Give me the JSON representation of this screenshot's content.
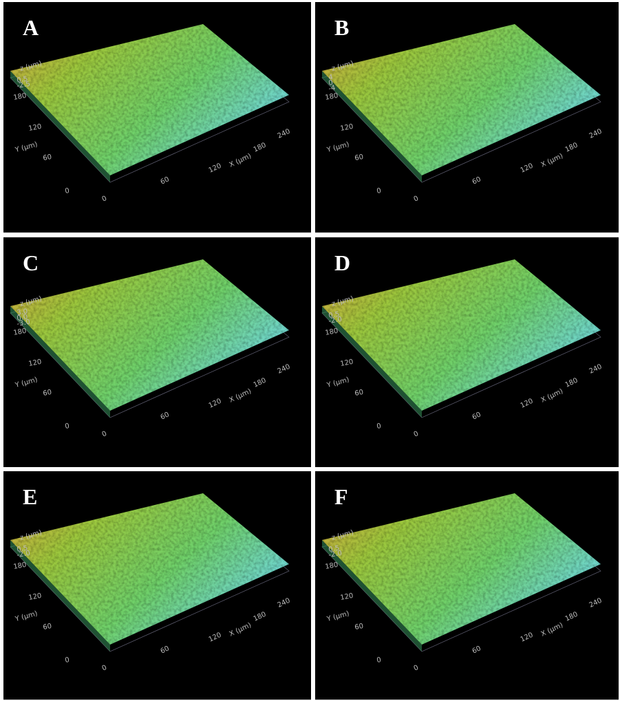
{
  "panels": [
    {
      "label": "A",
      "z_axis_label": "z (µm)",
      "z_ticks": [
        "0.5",
        "-2.5"
      ],
      "y_axis_label": "Y (µm)",
      "y_ticks": [
        "180",
        "120",
        "60",
        "0"
      ],
      "x_axis_label": "X (µm)",
      "x_ticks": [
        "0",
        "60",
        "120",
        "180",
        "240"
      ]
    },
    {
      "label": "B",
      "z_axis_label": "z (µm)",
      "z_ticks": [
        "4",
        "0",
        "-4"
      ],
      "y_axis_label": "Y (µm)",
      "y_ticks": [
        "180",
        "120",
        "60",
        "0"
      ],
      "x_axis_label": "X (µm)",
      "x_ticks": [
        "0",
        "60",
        "120",
        "180",
        "240"
      ]
    },
    {
      "label": "C",
      "z_axis_label": "z (µm)",
      "z_ticks": [
        "3.0",
        "0.0",
        "-3.0"
      ],
      "y_axis_label": "Y (µm)",
      "y_ticks": [
        "180",
        "120",
        "60",
        "0"
      ],
      "x_axis_label": "X (µm)",
      "x_ticks": [
        "0",
        "60",
        "120",
        "180",
        "240"
      ]
    },
    {
      "label": "D",
      "z_axis_label": "z (µm)",
      "z_ticks": [
        "0.5",
        "-2.0"
      ],
      "y_axis_label": "Y (µm)",
      "y_ticks": [
        "180",
        "120",
        "60",
        "0"
      ],
      "x_axis_label": "X (µm)",
      "x_ticks": [
        "0",
        "60",
        "120",
        "180",
        "240"
      ]
    },
    {
      "label": "E",
      "z_axis_label": "z (µm)",
      "z_ticks": [
        "0.5",
        "-2.0"
      ],
      "y_axis_label": "Y (µm)",
      "y_ticks": [
        "180",
        "120",
        "60",
        "0"
      ],
      "x_axis_label": "X (µm)",
      "x_ticks": [
        "0",
        "60",
        "120",
        "180",
        "240"
      ]
    },
    {
      "label": "F",
      "z_axis_label": "z (µm)",
      "z_ticks": [
        "0.5",
        "-2.0"
      ],
      "y_axis_label": "Y (µm)",
      "y_ticks": [
        "180",
        "120",
        "60",
        "0"
      ],
      "x_axis_label": "X (µm)",
      "x_ticks": [
        "0",
        "60",
        "120",
        "180",
        "240"
      ]
    }
  ]
}
